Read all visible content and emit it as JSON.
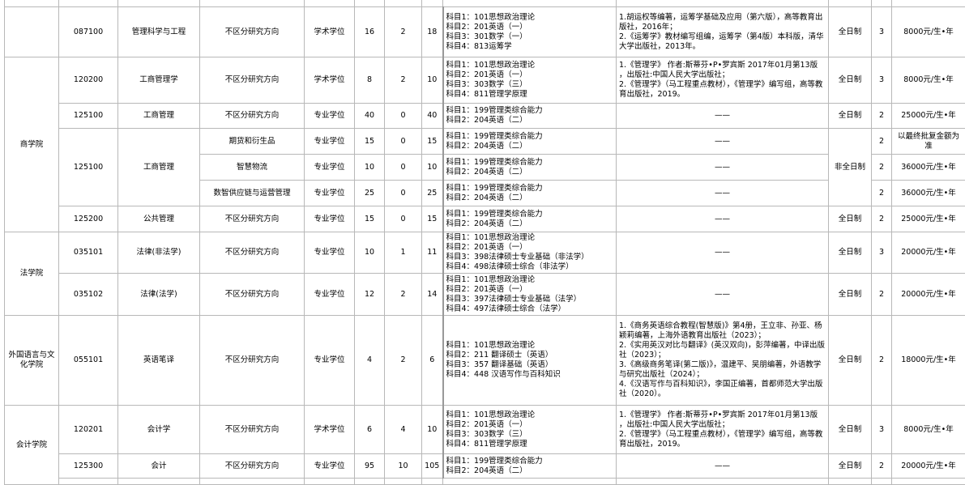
{
  "rows": [
    {
      "code": "087100",
      "major": "管理科学与工程",
      "dir": "不区分研究方向",
      "type": "学术学位",
      "a": "16",
      "b": "2",
      "t": "18",
      "subjects": "科目1：101思想政治理论\n科目2：201英语（一）\n科目3：301数学（一）\n科目4：813运筹学",
      "books": "1.胡运权等编著，运筹学基础及应用（第六版），高等教育出版社，2016年；\n2.《运筹学》教材编写组编，运筹学（第4版）本科版，清华大学出版社，2013年。",
      "mode": "全日制",
      "years": "3",
      "fee": "8000元/生•年"
    },
    {
      "school": "商学院",
      "code": "120200",
      "major": "工商管理学",
      "dir": "不区分研究方向",
      "type": "学术学位",
      "a": "8",
      "b": "2",
      "t": "10",
      "subjects": "科目1：101思想政治理论\n科目2：201英语（一）\n科目3：303数学（三）\n科目4：811管理学原理",
      "books": "1.《管理学》 作者:斯蒂芬•P•罗宾斯 2017年01月第13版 ，出版社:中国人民大学出版社；\n2.《管理学》（马工程重点教材），《管理学》编写组，高等教育出版社，2019。",
      "mode": "全日制",
      "years": "3",
      "fee": "8000元/生•年"
    },
    {
      "code": "125100",
      "major": "工商管理",
      "dir": "不区分研究方向",
      "type": "专业学位",
      "a": "40",
      "b": "0",
      "t": "40",
      "subjects": "科目1：199管理类综合能力\n科目2：204英语（二）",
      "books": "——",
      "mode": "全日制",
      "years": "2",
      "fee": "25000元/生•年"
    },
    {
      "code": "125100",
      "major": "工商管理",
      "dir": "期货和衍生品",
      "type": "专业学位",
      "a": "15",
      "b": "0",
      "t": "15",
      "subjects": "科目1：199管理类综合能力\n科目2：204英语（二）",
      "books": "——",
      "mode": "非全日制",
      "years": "2",
      "fee": "以最终批复金额为准"
    },
    {
      "dir": "智慧物流",
      "type": "专业学位",
      "a": "10",
      "b": "0",
      "t": "10",
      "subjects": "科目1：199管理类综合能力\n科目2：204英语（二）",
      "books": "——",
      "years": "2",
      "fee": "36000元/生•年"
    },
    {
      "dir": "数智供应链与运营管理",
      "type": "专业学位",
      "a": "25",
      "b": "0",
      "t": "25",
      "subjects": "科目1：199管理类综合能力\n科目2：204英语（二）",
      "books": "——",
      "years": "2",
      "fee": "36000元/生•年"
    },
    {
      "code": "125200",
      "major": "公共管理",
      "dir": "不区分研究方向",
      "type": "专业学位",
      "a": "15",
      "b": "0",
      "t": "15",
      "subjects": "科目1：199管理类综合能力\n科目2：204英语（二）",
      "books": "——",
      "mode": "全日制",
      "years": "2",
      "fee": "25000元/生•年"
    },
    {
      "school": "法学院",
      "code": "035101",
      "major": "法律(非法学)",
      "dir": "不区分研究方向",
      "type": "专业学位",
      "a": "10",
      "b": "1",
      "t": "11",
      "subjects": "科目1：101思想政治理论\n科目2：201英语（一）\n科目3：398法律硕士专业基础（非法学）\n科目4：498法律硕士综合（非法学）",
      "books": "——",
      "mode": "全日制",
      "years": "3",
      "fee": "20000元/生•年"
    },
    {
      "code": "035102",
      "major": "法律(法学)",
      "dir": "不区分研究方向",
      "type": "专业学位",
      "a": "12",
      "b": "2",
      "t": "14",
      "subjects": "科目1：101思想政治理论\n科目2：201英语（一）\n科目3：397法律硕士专业基础（法学）\n科目4：497法律硕士综合（法学）",
      "books": "——",
      "mode": "全日制",
      "years": "2",
      "fee": "20000元/生•年"
    },
    {
      "school": "外国语言与文化学院",
      "code": "055101",
      "major": "英语笔译",
      "dir": "不区分研究方向",
      "type": "专业学位",
      "a": "4",
      "b": "2",
      "t": "6",
      "subjects": "科目1：101思想政治理论\n科目2：211 翻译硕士（英语）\n科目3：357 翻译基础（英语）\n科目4：448 汉语写作与百科知识",
      "books": "1.《商务英语综合教程(智慧版)》第4册，王立非、孙亚、杨颖莉编著，上海外语教育出版社（2023）；\n2.《实用英汉对比与翻译》(英汉双向)，彭萍编著，中译出版社（2023）；\n3.《高级商务笔译(第二版)》，温建平、吴朋编著，外语教学与研究出版社（2024）；\n4.《汉语写作与百科知识》，李国正编著，首都师范大学出版社（2020）。",
      "mode": "全日制",
      "years": "2",
      "fee": "18000元/生•年"
    },
    {
      "school": "会计学院",
      "code": "120201",
      "major": "会计学",
      "dir": "不区分研究方向",
      "type": "学术学位",
      "a": "6",
      "b": "4",
      "t": "10",
      "subjects": "科目1：101思想政治理论\n科目2：201英语（一）\n科目3：303数学（三）\n科目4：811管理学原理",
      "books": "1.《管理学》 作者:斯蒂芬•P•罗宾斯 2017年01月第13版 ，出版社:中国人民大学出版社；\n2.《管理学》（马工程重点教材），《管理学》编写组，高等教育出版社，2019。",
      "mode": "全日制",
      "years": "3",
      "fee": "8000元/生•年"
    },
    {
      "code": "125300",
      "major": "会计",
      "dir": "不区分研究方向",
      "type": "专业学位",
      "a": "95",
      "b": "10",
      "t": "105",
      "subjects": "科目1：199管理类综合能力\n科目2：204英语（二）",
      "books": "——",
      "mode": "全日制",
      "years": "2",
      "fee": "20000元/生•年"
    }
  ]
}
